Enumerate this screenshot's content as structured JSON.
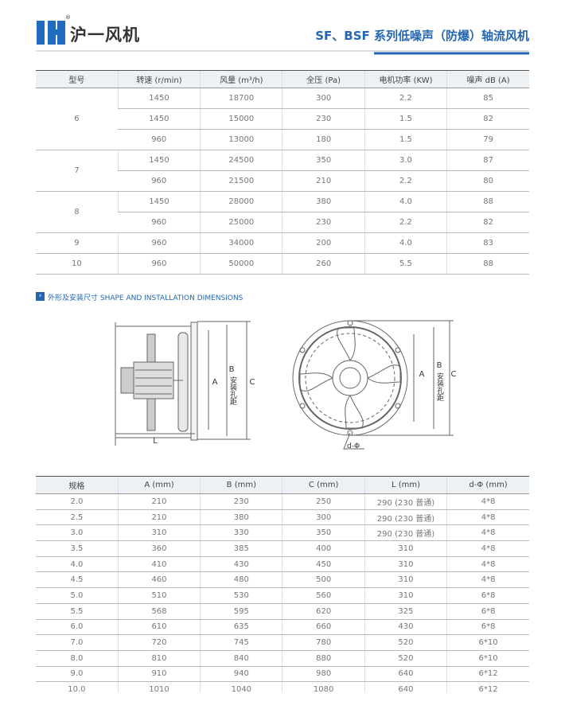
{
  "logo": {
    "text": "沪一风机",
    "mark": "®"
  },
  "header": {
    "title": "SF、BSF 系列低噪声（防爆）轴流风机"
  },
  "table1": {
    "headers": [
      "型号",
      "转速 (r/min)",
      "风量 (m³/h)",
      "全压 (Pa)",
      "电机功率 (KW)",
      "噪声 dB (A)"
    ],
    "groups": [
      {
        "model": "6",
        "rows": [
          [
            "1450",
            "18700",
            "300",
            "2.2",
            "85"
          ],
          [
            "1450",
            "15000",
            "230",
            "1.5",
            "82"
          ],
          [
            "960",
            "13000",
            "180",
            "1.5",
            "79"
          ]
        ]
      },
      {
        "model": "7",
        "rows": [
          [
            "1450",
            "24500",
            "350",
            "3.0",
            "87"
          ],
          [
            "960",
            "21500",
            "210",
            "2.2",
            "80"
          ]
        ]
      },
      {
        "model": "8",
        "rows": [
          [
            "1450",
            "28000",
            "380",
            "4.0",
            "88"
          ],
          [
            "960",
            "25000",
            "230",
            "2.2",
            "82"
          ]
        ]
      },
      {
        "model": "9",
        "rows": [
          [
            "960",
            "34000",
            "200",
            "4.0",
            "83"
          ]
        ]
      },
      {
        "model": "10",
        "rows": [
          [
            "960",
            "50000",
            "260",
            "5.5",
            "88"
          ]
        ]
      }
    ]
  },
  "section": {
    "title": "外形及安装尺寸 SHAPE AND INSTALLATION DIMENSIONS"
  },
  "diagram": {
    "side": {
      "a": "A",
      "b": "B",
      "b_note": "安装孔距",
      "c": "C",
      "l": "L"
    },
    "front": {
      "a": "A",
      "b": "B",
      "b_note": "安装孔距",
      "c": "C",
      "d_phi": "d-Φ"
    }
  },
  "table2": {
    "headers": [
      "规格",
      "A (mm)",
      "B (mm)",
      "C (mm)",
      "L (mm)",
      "d-Φ (mm)"
    ],
    "rows": [
      [
        "2.0",
        "210",
        "230",
        "250",
        "290 (230 普通)",
        "4*8"
      ],
      [
        "2.5",
        "210",
        "380",
        "300",
        "290 (230 普通)",
        "4*8"
      ],
      [
        "3.0",
        "310",
        "330",
        "350",
        "290 (230 普通)",
        "4*8"
      ],
      [
        "3.5",
        "360",
        "385",
        "400",
        "310",
        "4*8"
      ],
      [
        "4.0",
        "410",
        "430",
        "450",
        "310",
        "4*8"
      ],
      [
        "4.5",
        "460",
        "480",
        "500",
        "310",
        "4*8"
      ],
      [
        "5.0",
        "510",
        "530",
        "560",
        "310",
        "6*8"
      ],
      [
        "5.5",
        "568",
        "595",
        "620",
        "325",
        "6*8"
      ],
      [
        "6.0",
        "610",
        "635",
        "660",
        "430",
        "6*8"
      ],
      [
        "7.0",
        "720",
        "745",
        "780",
        "520",
        "6*10"
      ],
      [
        "8.0",
        "810",
        "840",
        "880",
        "520",
        "6*10"
      ],
      [
        "9.0",
        "910",
        "940",
        "980",
        "640",
        "6*12"
      ],
      [
        "10.0",
        "1010",
        "1040",
        "1080",
        "640",
        "6*12"
      ]
    ]
  }
}
